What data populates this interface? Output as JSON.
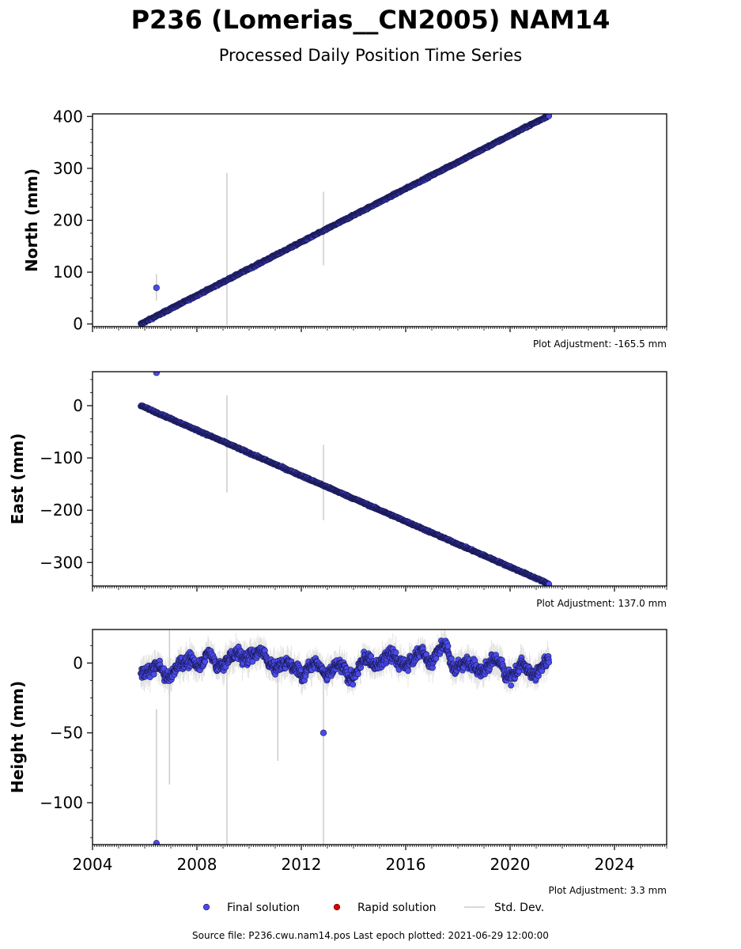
{
  "page": {
    "title": "P236 (Lomerias__CN2005) NAM14",
    "subtitle": "Processed Daily Position Time Series",
    "footer": "Source file: P236.cwu.nam14.pos  Last epoch plotted: 2021-06-29 12:00:00"
  },
  "chart_data": {
    "type": "scatter",
    "x_range": [
      2004,
      2026
    ],
    "x_major_ticks": [
      2004,
      2008,
      2012,
      2016,
      2020,
      2024
    ],
    "colors": {
      "final": "#4a4aee",
      "rapid": "#dd0000",
      "stddev": "#cccccc",
      "marker_edge": "#1a1a55"
    },
    "legend": {
      "placement": "bottom-center",
      "items": [
        {
          "label": "Final solution",
          "kind": "final"
        },
        {
          "label": "Rapid solution",
          "kind": "rapid"
        },
        {
          "label": "Std. Dev.",
          "kind": "stddev"
        }
      ]
    },
    "panels": [
      {
        "name": "north",
        "ylabel": "North (mm)",
        "ylim": [
          -5,
          405
        ],
        "y_ticks": [
          0,
          100,
          200,
          300,
          400
        ],
        "adjustment": "Plot Adjustment: -165.5 mm",
        "trend": {
          "x_start": 2005.85,
          "x_end": 2021.49,
          "y_start": 0,
          "y_end": 402
        },
        "outliers": [
          {
            "x": 2006.45,
            "y": 70
          }
        ],
        "stddev_spikes": [
          {
            "x": 2006.45,
            "lo": 45,
            "hi": 96
          },
          {
            "x": 2009.15,
            "lo": -2,
            "hi": 291
          },
          {
            "x": 2012.85,
            "lo": 113,
            "hi": 255
          }
        ]
      },
      {
        "name": "east",
        "ylabel": "East (mm)",
        "ylim": [
          -345,
          65
        ],
        "y_ticks": [
          0,
          -100,
          -200,
          -300
        ],
        "y_tick_labels": [
          "0",
          "−100",
          "−200",
          "−300"
        ],
        "adjustment": "Plot Adjustment: 137.0 mm",
        "trend": {
          "x_start": 2005.85,
          "x_end": 2021.49,
          "y_start": 0,
          "y_end": -341
        },
        "outliers": [
          {
            "x": 2006.45,
            "y": 63
          }
        ],
        "stddev_spikes": [
          {
            "x": 2009.15,
            "lo": -166,
            "hi": 20
          },
          {
            "x": 2012.85,
            "lo": -219,
            "hi": -75
          }
        ]
      },
      {
        "name": "height",
        "ylabel": "Height (mm)",
        "ylim": [
          -130,
          24
        ],
        "y_ticks": [
          0,
          -50,
          -100
        ],
        "y_tick_labels": [
          "0",
          "−50",
          "−100"
        ],
        "adjustment": "Plot Adjustment: 3.3 mm",
        "trend": {
          "x_start": 2005.85,
          "x_end": 2021.49,
          "y_start": 0,
          "y_end": 0
        },
        "noise_mm": 8,
        "outliers": [
          {
            "x": 2012.85,
            "y": -50
          },
          {
            "x": 2006.45,
            "y": -129
          }
        ],
        "stddev_spikes": [
          {
            "x": 2006.45,
            "lo": -130,
            "hi": -33
          },
          {
            "x": 2006.95,
            "lo": -87,
            "hi": 24
          },
          {
            "x": 2009.15,
            "lo": -130,
            "hi": 5
          },
          {
            "x": 2011.1,
            "lo": -70,
            "hi": 0
          },
          {
            "x": 2012.85,
            "lo": -130,
            "hi": 0
          }
        ]
      }
    ]
  }
}
